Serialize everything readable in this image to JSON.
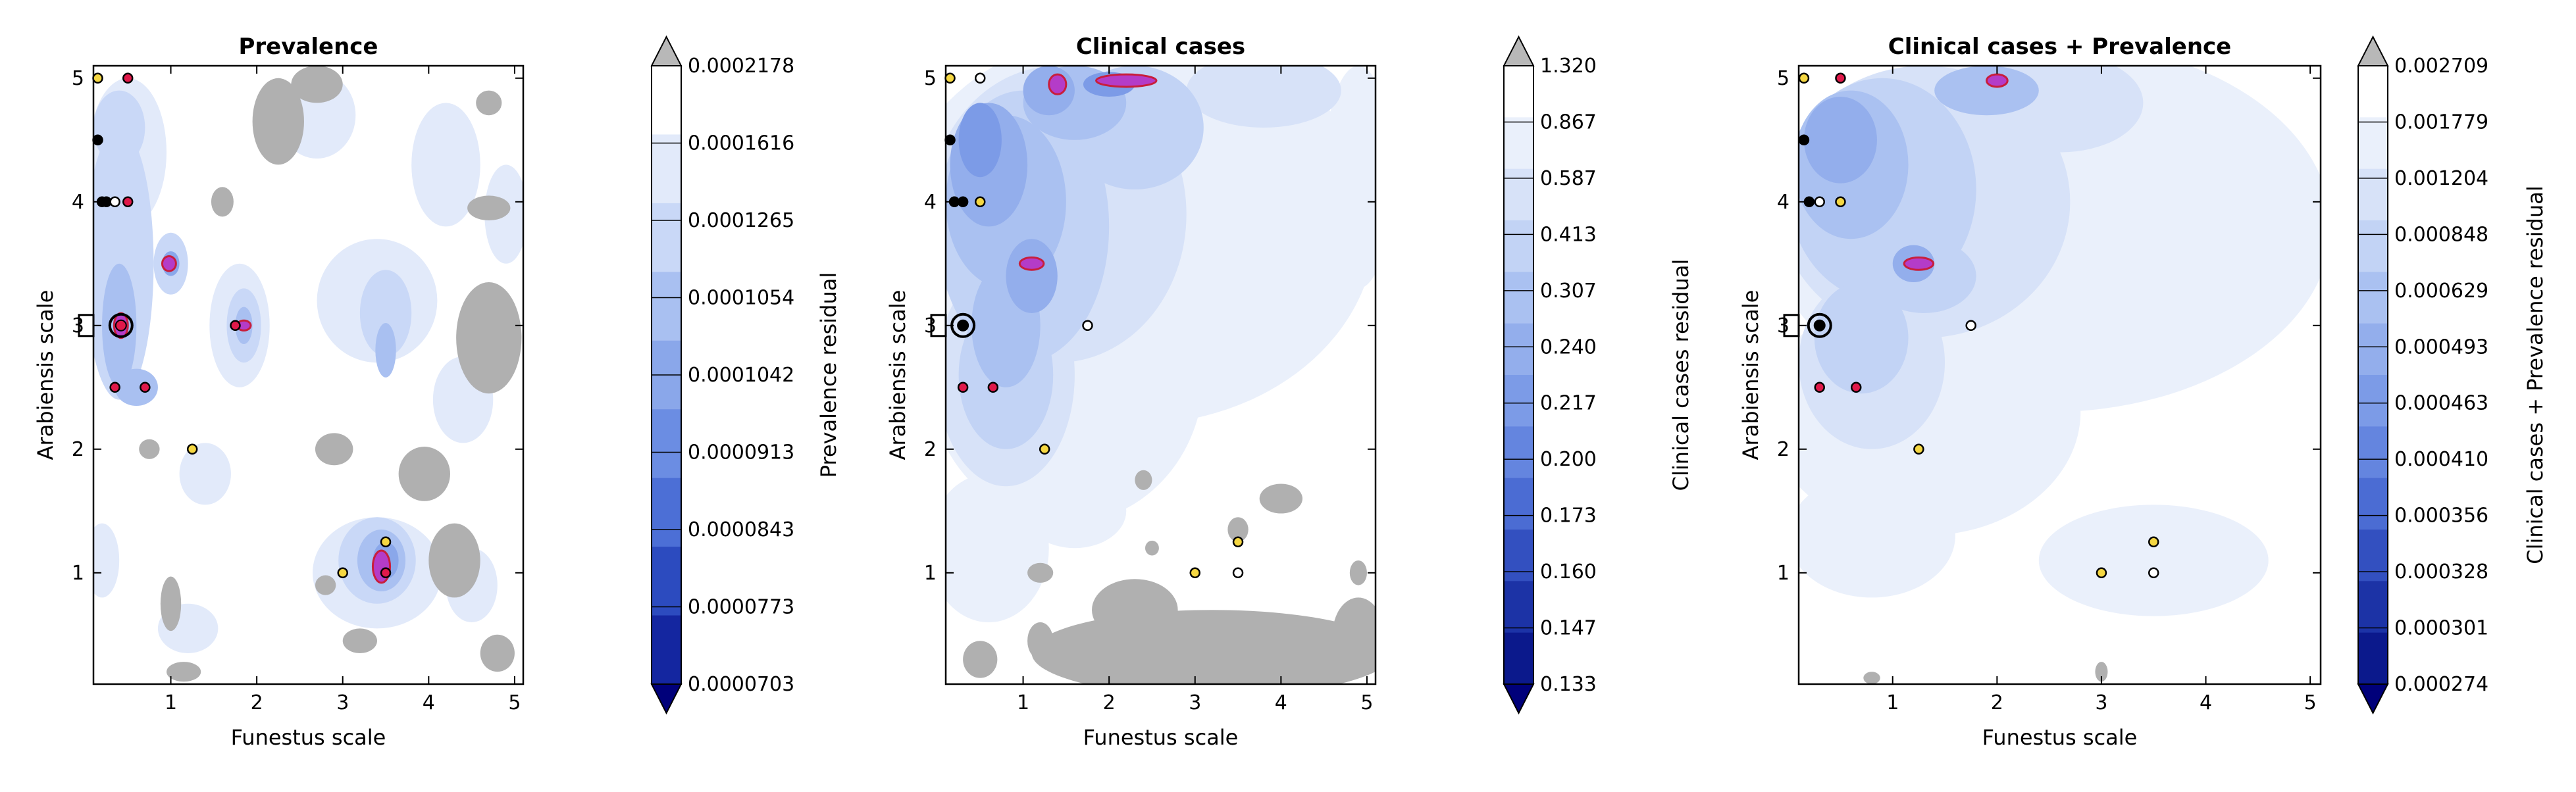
{
  "palette": {
    "land": "#b0b0b0",
    "deep_blue": "#00007a",
    "over": "#b8b8b8",
    "hotspot_fill": "#b43cc8",
    "hotspot_edge": "#c81e3c",
    "marker_red": "#e0194a",
    "marker_yellow": "#f5d742",
    "marker_white": "#ffffff"
  },
  "chart_data": [
    {
      "type": "contour",
      "title": "Prevalence",
      "xlabel": "Funestus scale",
      "ylabel": "Arabiensis scale",
      "xlim": [
        0.1,
        5.1
      ],
      "ylim": [
        0.1,
        5.1
      ],
      "xticks": [
        "1",
        "2",
        "3",
        "4",
        "5"
      ],
      "yticks": [
        "1",
        "2",
        "3",
        "4",
        "5"
      ],
      "colorbar": {
        "label": "Prevalence residual",
        "ticks": [
          "0.0002178",
          "0.0001616",
          "0.0001265",
          "0.0001054",
          "0.0001042",
          "0.0000913",
          "0.0000843",
          "0.0000773",
          "0.0000703"
        ],
        "colors": [
          "#ffffff",
          "#e2eafa",
          "#c9d8f7",
          "#a9c0f1",
          "#8aa7ea",
          "#6b8de3",
          "#4c6fd6",
          "#2c4bbf",
          "#1426a0",
          "#00007a"
        ]
      },
      "regions": [
        {
          "level": 1,
          "x": 1.8,
          "y": 3.0,
          "rx": 0.35,
          "ry": 0.5
        },
        {
          "level": 1,
          "x": 0.5,
          "y": 4.4,
          "rx": 0.45,
          "ry": 0.6
        },
        {
          "level": 1,
          "x": 2.7,
          "y": 4.7,
          "rx": 0.45,
          "ry": 0.35
        },
        {
          "level": 1,
          "x": 4.2,
          "y": 4.3,
          "rx": 0.4,
          "ry": 0.5
        },
        {
          "level": 1,
          "x": 3.4,
          "y": 3.2,
          "rx": 0.7,
          "ry": 0.5
        },
        {
          "level": 1,
          "x": 1.4,
          "y": 1.8,
          "rx": 0.3,
          "ry": 0.25
        },
        {
          "level": 1,
          "x": 3.4,
          "y": 1.0,
          "rx": 0.75,
          "ry": 0.45
        },
        {
          "level": 1,
          "x": 4.4,
          "y": 2.4,
          "rx": 0.35,
          "ry": 0.35
        },
        {
          "level": 1,
          "x": 0.2,
          "y": 1.1,
          "rx": 0.2,
          "ry": 0.3
        },
        {
          "level": 1,
          "x": 1.2,
          "y": 0.55,
          "rx": 0.35,
          "ry": 0.2
        },
        {
          "level": 1,
          "x": 4.5,
          "y": 0.9,
          "rx": 0.3,
          "ry": 0.3
        },
        {
          "level": 1,
          "x": 4.9,
          "y": 3.9,
          "rx": 0.25,
          "ry": 0.4
        },
        {
          "level": 2,
          "x": 0.4,
          "y": 3.5,
          "rx": 0.4,
          "ry": 1.1
        },
        {
          "level": 2,
          "x": 3.5,
          "y": 3.1,
          "rx": 0.3,
          "ry": 0.35
        },
        {
          "level": 2,
          "x": 1.85,
          "y": 3.0,
          "rx": 0.2,
          "ry": 0.3
        },
        {
          "level": 2,
          "x": 1.0,
          "y": 3.5,
          "rx": 0.2,
          "ry": 0.25
        },
        {
          "level": 2,
          "x": 3.4,
          "y": 1.1,
          "rx": 0.45,
          "ry": 0.35
        },
        {
          "level": 2,
          "x": 0.4,
          "y": 4.6,
          "rx": 0.3,
          "ry": 0.3
        },
        {
          "level": 3,
          "x": 0.4,
          "y": 3.0,
          "rx": 0.2,
          "ry": 0.5
        },
        {
          "level": 3,
          "x": 3.5,
          "y": 2.8,
          "rx": 0.12,
          "ry": 0.22
        },
        {
          "level": 3,
          "x": 1.85,
          "y": 3.0,
          "rx": 0.1,
          "ry": 0.15
        },
        {
          "level": 3,
          "x": 3.45,
          "y": 1.1,
          "rx": 0.28,
          "ry": 0.25
        },
        {
          "level": 3,
          "x": 0.6,
          "y": 2.5,
          "rx": 0.25,
          "ry": 0.15
        },
        {
          "level": 4,
          "x": 1.0,
          "y": 3.5,
          "rx": 0.1,
          "ry": 0.1
        },
        {
          "level": 4,
          "x": 3.5,
          "y": 1.1,
          "rx": 0.15,
          "ry": 0.15
        }
      ],
      "masks": [
        {
          "x": 2.25,
          "y": 4.65,
          "rx": 0.3,
          "ry": 0.35
        },
        {
          "x": 2.7,
          "y": 4.95,
          "rx": 0.3,
          "ry": 0.15
        },
        {
          "x": 1.6,
          "y": 4.0,
          "rx": 0.13,
          "ry": 0.12
        },
        {
          "x": 4.7,
          "y": 3.95,
          "rx": 0.25,
          "ry": 0.1
        },
        {
          "x": 4.7,
          "y": 2.9,
          "rx": 0.38,
          "ry": 0.45
        },
        {
          "x": 3.95,
          "y": 1.8,
          "rx": 0.3,
          "ry": 0.22
        },
        {
          "x": 2.9,
          "y": 2.0,
          "rx": 0.22,
          "ry": 0.13
        },
        {
          "x": 1.0,
          "y": 0.75,
          "rx": 0.12,
          "ry": 0.22
        },
        {
          "x": 4.3,
          "y": 1.1,
          "rx": 0.3,
          "ry": 0.3
        },
        {
          "x": 0.75,
          "y": 2.0,
          "rx": 0.12,
          "ry": 0.08
        },
        {
          "x": 3.2,
          "y": 0.45,
          "rx": 0.2,
          "ry": 0.1
        },
        {
          "x": 4.8,
          "y": 0.35,
          "rx": 0.2,
          "ry": 0.15
        },
        {
          "x": 2.8,
          "y": 0.9,
          "rx": 0.12,
          "ry": 0.08
        },
        {
          "x": 4.7,
          "y": 4.8,
          "rx": 0.15,
          "ry": 0.1
        },
        {
          "x": 1.15,
          "y": 0.2,
          "rx": 0.2,
          "ry": 0.08
        }
      ],
      "hotspots": [
        {
          "x": 0.42,
          "y": 3.0,
          "rx": 0.08,
          "ry": 0.1
        },
        {
          "x": 0.98,
          "y": 3.5,
          "rx": 0.08,
          "ry": 0.06
        },
        {
          "x": 1.85,
          "y": 3.0,
          "rx": 0.08,
          "ry": 0.04
        },
        {
          "x": 3.45,
          "y": 1.05,
          "rx": 0.1,
          "ry": 0.13
        }
      ],
      "points": [
        {
          "x": 0.15,
          "y": 5.0,
          "color": "yellow"
        },
        {
          "x": 0.5,
          "y": 5.0,
          "color": "red"
        },
        {
          "x": 0.15,
          "y": 4.5,
          "color": "black"
        },
        {
          "x": 0.2,
          "y": 4.0,
          "color": "black"
        },
        {
          "x": 0.25,
          "y": 4.0,
          "color": "black"
        },
        {
          "x": 0.35,
          "y": 4.0,
          "color": "white"
        },
        {
          "x": 0.5,
          "y": 4.0,
          "color": "red"
        },
        {
          "x": 0.42,
          "y": 3.0,
          "color": "red",
          "ring": true
        },
        {
          "x": 0.35,
          "y": 2.5,
          "color": "red"
        },
        {
          "x": 0.7,
          "y": 2.5,
          "color": "red"
        },
        {
          "x": 1.75,
          "y": 3.0,
          "color": "red"
        },
        {
          "x": 1.25,
          "y": 2.0,
          "color": "yellow"
        },
        {
          "x": 3.0,
          "y": 1.0,
          "color": "yellow"
        },
        {
          "x": 3.5,
          "y": 1.25,
          "color": "yellow"
        },
        {
          "x": 3.5,
          "y": 1.0,
          "color": "red"
        }
      ],
      "square_marker": {
        "x": 0.1,
        "y": 3.0
      }
    },
    {
      "type": "contour",
      "title": "Clinical cases",
      "xlabel": "Funestus scale",
      "ylabel": "Arabiensis scale",
      "xlim": [
        0.1,
        5.1
      ],
      "ylim": [
        0.1,
        5.1
      ],
      "xticks": [
        "1",
        "2",
        "3",
        "4",
        "5"
      ],
      "yticks": [
        "1",
        "2",
        "3",
        "4",
        "5"
      ],
      "colorbar": {
        "label": "Clinical cases residual",
        "ticks": [
          "1.320",
          "0.867",
          "0.587",
          "0.413",
          "0.307",
          "0.240",
          "0.217",
          "0.200",
          "0.173",
          "0.160",
          "0.147",
          "0.133"
        ],
        "colors": [
          "#ffffff",
          "#eaf0fb",
          "#d7e2f8",
          "#c2d3f5",
          "#aac1f1",
          "#93aeec",
          "#7c9be7",
          "#6485df",
          "#4b6cd3",
          "#3350c0",
          "#1c33a6",
          "#0b198c",
          "#00007a"
        ]
      },
      "regions": [
        {
          "level": 1,
          "x": 2.3,
          "y": 3.8,
          "rx": 2.8,
          "ry": 1.6
        },
        {
          "level": 1,
          "x": 1.5,
          "y": 2.6,
          "rx": 1.6,
          "ry": 1.2
        },
        {
          "level": 1,
          "x": 4.9,
          "y": 4.2,
          "rx": 0.4,
          "ry": 0.9
        },
        {
          "level": 1,
          "x": 0.6,
          "y": 1.2,
          "rx": 0.7,
          "ry": 0.6
        },
        {
          "level": 1,
          "x": 1.6,
          "y": 1.5,
          "rx": 0.6,
          "ry": 0.3
        },
        {
          "level": 2,
          "x": 1.4,
          "y": 3.9,
          "rx": 1.5,
          "ry": 1.2
        },
        {
          "level": 2,
          "x": 0.8,
          "y": 2.6,
          "rx": 0.8,
          "ry": 0.9
        },
        {
          "level": 2,
          "x": 3.8,
          "y": 4.9,
          "rx": 0.9,
          "ry": 0.3
        },
        {
          "level": 3,
          "x": 1.0,
          "y": 3.8,
          "rx": 1.0,
          "ry": 1.1
        },
        {
          "level": 3,
          "x": 2.3,
          "y": 4.6,
          "rx": 0.8,
          "ry": 0.5
        },
        {
          "level": 3,
          "x": 0.8,
          "y": 2.6,
          "rx": 0.55,
          "ry": 0.6
        },
        {
          "level": 4,
          "x": 0.8,
          "y": 4.0,
          "rx": 0.7,
          "ry": 0.7
        },
        {
          "level": 4,
          "x": 1.6,
          "y": 4.8,
          "rx": 0.6,
          "ry": 0.3
        },
        {
          "level": 4,
          "x": 0.8,
          "y": 3.0,
          "rx": 0.4,
          "ry": 0.5
        },
        {
          "level": 5,
          "x": 0.6,
          "y": 4.3,
          "rx": 0.45,
          "ry": 0.5
        },
        {
          "level": 5,
          "x": 1.1,
          "y": 3.4,
          "rx": 0.3,
          "ry": 0.3
        },
        {
          "level": 5,
          "x": 1.3,
          "y": 4.9,
          "rx": 0.3,
          "ry": 0.2
        },
        {
          "level": 6,
          "x": 0.5,
          "y": 4.5,
          "rx": 0.25,
          "ry": 0.3
        },
        {
          "level": 6,
          "x": 2.0,
          "y": 4.95,
          "rx": 0.3,
          "ry": 0.1
        }
      ],
      "masks": [
        {
          "x": 3.2,
          "y": 0.35,
          "rx": 2.1,
          "ry": 0.35
        },
        {
          "x": 4.9,
          "y": 0.5,
          "rx": 0.3,
          "ry": 0.3
        },
        {
          "x": 4.0,
          "y": 1.6,
          "rx": 0.25,
          "ry": 0.12
        },
        {
          "x": 2.3,
          "y": 0.7,
          "rx": 0.5,
          "ry": 0.25
        },
        {
          "x": 3.5,
          "y": 1.35,
          "rx": 0.12,
          "ry": 0.1
        },
        {
          "x": 1.2,
          "y": 0.45,
          "rx": 0.15,
          "ry": 0.15
        },
        {
          "x": 0.5,
          "y": 0.3,
          "rx": 0.2,
          "ry": 0.15
        },
        {
          "x": 1.2,
          "y": 1.0,
          "rx": 0.15,
          "ry": 0.08
        },
        {
          "x": 2.5,
          "y": 1.2,
          "rx": 0.08,
          "ry": 0.06
        },
        {
          "x": 4.9,
          "y": 1.0,
          "rx": 0.1,
          "ry": 0.1
        },
        {
          "x": 2.4,
          "y": 1.75,
          "rx": 0.1,
          "ry": 0.08
        }
      ],
      "hotspots": [
        {
          "x": 1.4,
          "y": 4.95,
          "rx": 0.1,
          "ry": 0.08
        },
        {
          "x": 2.2,
          "y": 4.98,
          "rx": 0.35,
          "ry": 0.05
        },
        {
          "x": 1.1,
          "y": 3.5,
          "rx": 0.14,
          "ry": 0.05
        }
      ],
      "points": [
        {
          "x": 0.15,
          "y": 5.0,
          "color": "yellow"
        },
        {
          "x": 0.5,
          "y": 5.0,
          "color": "white"
        },
        {
          "x": 0.15,
          "y": 4.5,
          "color": "black"
        },
        {
          "x": 0.2,
          "y": 4.0,
          "color": "black"
        },
        {
          "x": 0.3,
          "y": 4.0,
          "color": "black"
        },
        {
          "x": 0.5,
          "y": 4.0,
          "color": "yellow"
        },
        {
          "x": 0.3,
          "y": 3.0,
          "color": "white",
          "ring": true
        },
        {
          "x": 0.3,
          "y": 2.5,
          "color": "red"
        },
        {
          "x": 0.65,
          "y": 2.5,
          "color": "red"
        },
        {
          "x": 1.75,
          "y": 3.0,
          "color": "white"
        },
        {
          "x": 1.25,
          "y": 2.0,
          "color": "yellow"
        },
        {
          "x": 3.0,
          "y": 1.0,
          "color": "yellow"
        },
        {
          "x": 3.5,
          "y": 1.25,
          "color": "yellow"
        },
        {
          "x": 3.5,
          "y": 1.0,
          "color": "white"
        }
      ],
      "square_marker": {
        "x": 0.1,
        "y": 3.0
      }
    },
    {
      "type": "contour",
      "title": "Clinical cases + Prevalence",
      "xlabel": "Funestus scale",
      "ylabel": "Arabiensis scale",
      "xlim": [
        0.1,
        5.1
      ],
      "ylim": [
        0.1,
        5.1
      ],
      "xticks": [
        "1",
        "2",
        "3",
        "4",
        "5"
      ],
      "yticks": [
        "1",
        "2",
        "3",
        "4",
        "5"
      ],
      "colorbar": {
        "label": "Clinical cases + Prevalence residual",
        "ticks": [
          "0.002709",
          "0.001779",
          "0.001204",
          "0.000848",
          "0.000629",
          "0.000493",
          "0.000463",
          "0.000410",
          "0.000356",
          "0.000328",
          "0.000301",
          "0.000274"
        ],
        "colors": [
          "#ffffff",
          "#eaf0fb",
          "#d7e2f8",
          "#c2d3f5",
          "#aac1f1",
          "#93aeec",
          "#7c9be7",
          "#6485df",
          "#4b6cd3",
          "#3350c0",
          "#1c33a6",
          "#0b198c",
          "#00007a"
        ]
      },
      "regions": [
        {
          "level": 1,
          "x": 2.5,
          "y": 3.8,
          "rx": 2.7,
          "ry": 1.5
        },
        {
          "level": 1,
          "x": 1.3,
          "y": 2.3,
          "rx": 1.5,
          "ry": 1.0
        },
        {
          "level": 1,
          "x": 3.5,
          "y": 1.1,
          "rx": 1.1,
          "ry": 0.45
        },
        {
          "level": 1,
          "x": 0.8,
          "y": 1.3,
          "rx": 0.8,
          "ry": 0.5
        },
        {
          "level": 2,
          "x": 1.3,
          "y": 4.0,
          "rx": 1.4,
          "ry": 1.1
        },
        {
          "level": 2,
          "x": 0.8,
          "y": 2.7,
          "rx": 0.7,
          "ry": 0.7
        },
        {
          "level": 2,
          "x": 2.6,
          "y": 4.8,
          "rx": 0.8,
          "ry": 0.4
        },
        {
          "level": 3,
          "x": 0.9,
          "y": 4.1,
          "rx": 0.9,
          "ry": 0.9
        },
        {
          "level": 3,
          "x": 1.3,
          "y": 3.4,
          "rx": 0.5,
          "ry": 0.3
        },
        {
          "level": 3,
          "x": 0.7,
          "y": 2.9,
          "rx": 0.45,
          "ry": 0.45
        },
        {
          "level": 4,
          "x": 0.6,
          "y": 4.3,
          "rx": 0.55,
          "ry": 0.6
        },
        {
          "level": 4,
          "x": 1.9,
          "y": 4.9,
          "rx": 0.5,
          "ry": 0.2
        },
        {
          "level": 5,
          "x": 0.5,
          "y": 4.5,
          "rx": 0.35,
          "ry": 0.35
        },
        {
          "level": 5,
          "x": 1.2,
          "y": 3.5,
          "rx": 0.2,
          "ry": 0.15
        }
      ],
      "masks": [
        {
          "x": 3.0,
          "y": 0.2,
          "rx": 0.06,
          "ry": 0.08
        },
        {
          "x": 0.8,
          "y": 0.15,
          "rx": 0.08,
          "ry": 0.05
        }
      ],
      "hotspots": [
        {
          "x": 2.0,
          "y": 4.98,
          "rx": 0.1,
          "ry": 0.05
        },
        {
          "x": 1.25,
          "y": 3.5,
          "rx": 0.14,
          "ry": 0.05
        }
      ],
      "points": [
        {
          "x": 0.15,
          "y": 5.0,
          "color": "yellow"
        },
        {
          "x": 0.5,
          "y": 5.0,
          "color": "red"
        },
        {
          "x": 0.15,
          "y": 4.5,
          "color": "black"
        },
        {
          "x": 0.2,
          "y": 4.0,
          "color": "black"
        },
        {
          "x": 0.3,
          "y": 4.0,
          "color": "white"
        },
        {
          "x": 0.5,
          "y": 4.0,
          "color": "yellow"
        },
        {
          "x": 0.3,
          "y": 3.0,
          "color": "white",
          "ring": true
        },
        {
          "x": 0.3,
          "y": 2.5,
          "color": "red"
        },
        {
          "x": 0.65,
          "y": 2.5,
          "color": "red"
        },
        {
          "x": 1.75,
          "y": 3.0,
          "color": "white"
        },
        {
          "x": 1.25,
          "y": 2.0,
          "color": "yellow"
        },
        {
          "x": 3.0,
          "y": 1.0,
          "color": "yellow"
        },
        {
          "x": 3.5,
          "y": 1.25,
          "color": "yellow"
        },
        {
          "x": 3.5,
          "y": 1.0,
          "color": "white"
        }
      ],
      "square_marker": {
        "x": 0.1,
        "y": 3.0
      }
    }
  ]
}
